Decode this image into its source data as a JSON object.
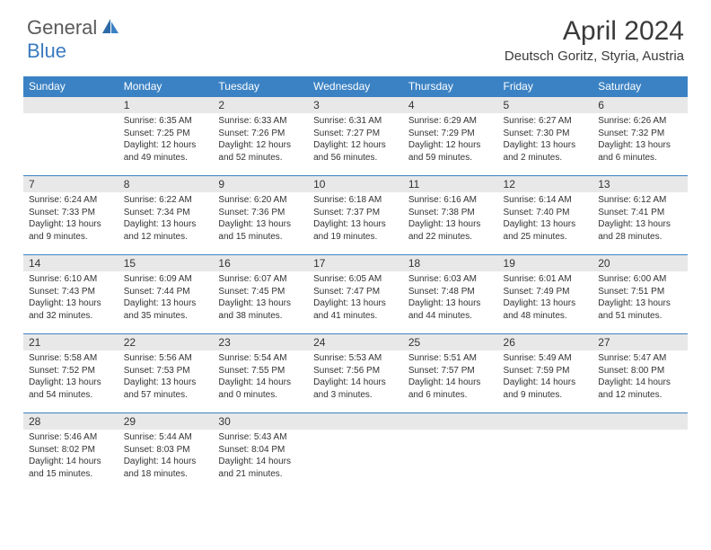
{
  "logo": {
    "general": "General",
    "blue": "Blue"
  },
  "title": "April 2024",
  "location": "Deutsch Goritz, Styria, Austria",
  "colors": {
    "header_bg": "#3b82c4",
    "header_text": "#ffffff",
    "daynum_bg": "#e8e8e8",
    "text": "#333333",
    "rule": "#3b82c4",
    "logo_gray": "#5a5a5a",
    "logo_blue": "#3b7bbf"
  },
  "weekdays": [
    "Sunday",
    "Monday",
    "Tuesday",
    "Wednesday",
    "Thursday",
    "Friday",
    "Saturday"
  ],
  "weeks": [
    [
      null,
      {
        "n": "1",
        "sr": "Sunrise: 6:35 AM",
        "ss": "Sunset: 7:25 PM",
        "d1": "Daylight: 12 hours",
        "d2": "and 49 minutes."
      },
      {
        "n": "2",
        "sr": "Sunrise: 6:33 AM",
        "ss": "Sunset: 7:26 PM",
        "d1": "Daylight: 12 hours",
        "d2": "and 52 minutes."
      },
      {
        "n": "3",
        "sr": "Sunrise: 6:31 AM",
        "ss": "Sunset: 7:27 PM",
        "d1": "Daylight: 12 hours",
        "d2": "and 56 minutes."
      },
      {
        "n": "4",
        "sr": "Sunrise: 6:29 AM",
        "ss": "Sunset: 7:29 PM",
        "d1": "Daylight: 12 hours",
        "d2": "and 59 minutes."
      },
      {
        "n": "5",
        "sr": "Sunrise: 6:27 AM",
        "ss": "Sunset: 7:30 PM",
        "d1": "Daylight: 13 hours",
        "d2": "and 2 minutes."
      },
      {
        "n": "6",
        "sr": "Sunrise: 6:26 AM",
        "ss": "Sunset: 7:32 PM",
        "d1": "Daylight: 13 hours",
        "d2": "and 6 minutes."
      }
    ],
    [
      {
        "n": "7",
        "sr": "Sunrise: 6:24 AM",
        "ss": "Sunset: 7:33 PM",
        "d1": "Daylight: 13 hours",
        "d2": "and 9 minutes."
      },
      {
        "n": "8",
        "sr": "Sunrise: 6:22 AM",
        "ss": "Sunset: 7:34 PM",
        "d1": "Daylight: 13 hours",
        "d2": "and 12 minutes."
      },
      {
        "n": "9",
        "sr": "Sunrise: 6:20 AM",
        "ss": "Sunset: 7:36 PM",
        "d1": "Daylight: 13 hours",
        "d2": "and 15 minutes."
      },
      {
        "n": "10",
        "sr": "Sunrise: 6:18 AM",
        "ss": "Sunset: 7:37 PM",
        "d1": "Daylight: 13 hours",
        "d2": "and 19 minutes."
      },
      {
        "n": "11",
        "sr": "Sunrise: 6:16 AM",
        "ss": "Sunset: 7:38 PM",
        "d1": "Daylight: 13 hours",
        "d2": "and 22 minutes."
      },
      {
        "n": "12",
        "sr": "Sunrise: 6:14 AM",
        "ss": "Sunset: 7:40 PM",
        "d1": "Daylight: 13 hours",
        "d2": "and 25 minutes."
      },
      {
        "n": "13",
        "sr": "Sunrise: 6:12 AM",
        "ss": "Sunset: 7:41 PM",
        "d1": "Daylight: 13 hours",
        "d2": "and 28 minutes."
      }
    ],
    [
      {
        "n": "14",
        "sr": "Sunrise: 6:10 AM",
        "ss": "Sunset: 7:43 PM",
        "d1": "Daylight: 13 hours",
        "d2": "and 32 minutes."
      },
      {
        "n": "15",
        "sr": "Sunrise: 6:09 AM",
        "ss": "Sunset: 7:44 PM",
        "d1": "Daylight: 13 hours",
        "d2": "and 35 minutes."
      },
      {
        "n": "16",
        "sr": "Sunrise: 6:07 AM",
        "ss": "Sunset: 7:45 PM",
        "d1": "Daylight: 13 hours",
        "d2": "and 38 minutes."
      },
      {
        "n": "17",
        "sr": "Sunrise: 6:05 AM",
        "ss": "Sunset: 7:47 PM",
        "d1": "Daylight: 13 hours",
        "d2": "and 41 minutes."
      },
      {
        "n": "18",
        "sr": "Sunrise: 6:03 AM",
        "ss": "Sunset: 7:48 PM",
        "d1": "Daylight: 13 hours",
        "d2": "and 44 minutes."
      },
      {
        "n": "19",
        "sr": "Sunrise: 6:01 AM",
        "ss": "Sunset: 7:49 PM",
        "d1": "Daylight: 13 hours",
        "d2": "and 48 minutes."
      },
      {
        "n": "20",
        "sr": "Sunrise: 6:00 AM",
        "ss": "Sunset: 7:51 PM",
        "d1": "Daylight: 13 hours",
        "d2": "and 51 minutes."
      }
    ],
    [
      {
        "n": "21",
        "sr": "Sunrise: 5:58 AM",
        "ss": "Sunset: 7:52 PM",
        "d1": "Daylight: 13 hours",
        "d2": "and 54 minutes."
      },
      {
        "n": "22",
        "sr": "Sunrise: 5:56 AM",
        "ss": "Sunset: 7:53 PM",
        "d1": "Daylight: 13 hours",
        "d2": "and 57 minutes."
      },
      {
        "n": "23",
        "sr": "Sunrise: 5:54 AM",
        "ss": "Sunset: 7:55 PM",
        "d1": "Daylight: 14 hours",
        "d2": "and 0 minutes."
      },
      {
        "n": "24",
        "sr": "Sunrise: 5:53 AM",
        "ss": "Sunset: 7:56 PM",
        "d1": "Daylight: 14 hours",
        "d2": "and 3 minutes."
      },
      {
        "n": "25",
        "sr": "Sunrise: 5:51 AM",
        "ss": "Sunset: 7:57 PM",
        "d1": "Daylight: 14 hours",
        "d2": "and 6 minutes."
      },
      {
        "n": "26",
        "sr": "Sunrise: 5:49 AM",
        "ss": "Sunset: 7:59 PM",
        "d1": "Daylight: 14 hours",
        "d2": "and 9 minutes."
      },
      {
        "n": "27",
        "sr": "Sunrise: 5:47 AM",
        "ss": "Sunset: 8:00 PM",
        "d1": "Daylight: 14 hours",
        "d2": "and 12 minutes."
      }
    ],
    [
      {
        "n": "28",
        "sr": "Sunrise: 5:46 AM",
        "ss": "Sunset: 8:02 PM",
        "d1": "Daylight: 14 hours",
        "d2": "and 15 minutes."
      },
      {
        "n": "29",
        "sr": "Sunrise: 5:44 AM",
        "ss": "Sunset: 8:03 PM",
        "d1": "Daylight: 14 hours",
        "d2": "and 18 minutes."
      },
      {
        "n": "30",
        "sr": "Sunrise: 5:43 AM",
        "ss": "Sunset: 8:04 PM",
        "d1": "Daylight: 14 hours",
        "d2": "and 21 minutes."
      },
      null,
      null,
      null,
      null
    ]
  ]
}
